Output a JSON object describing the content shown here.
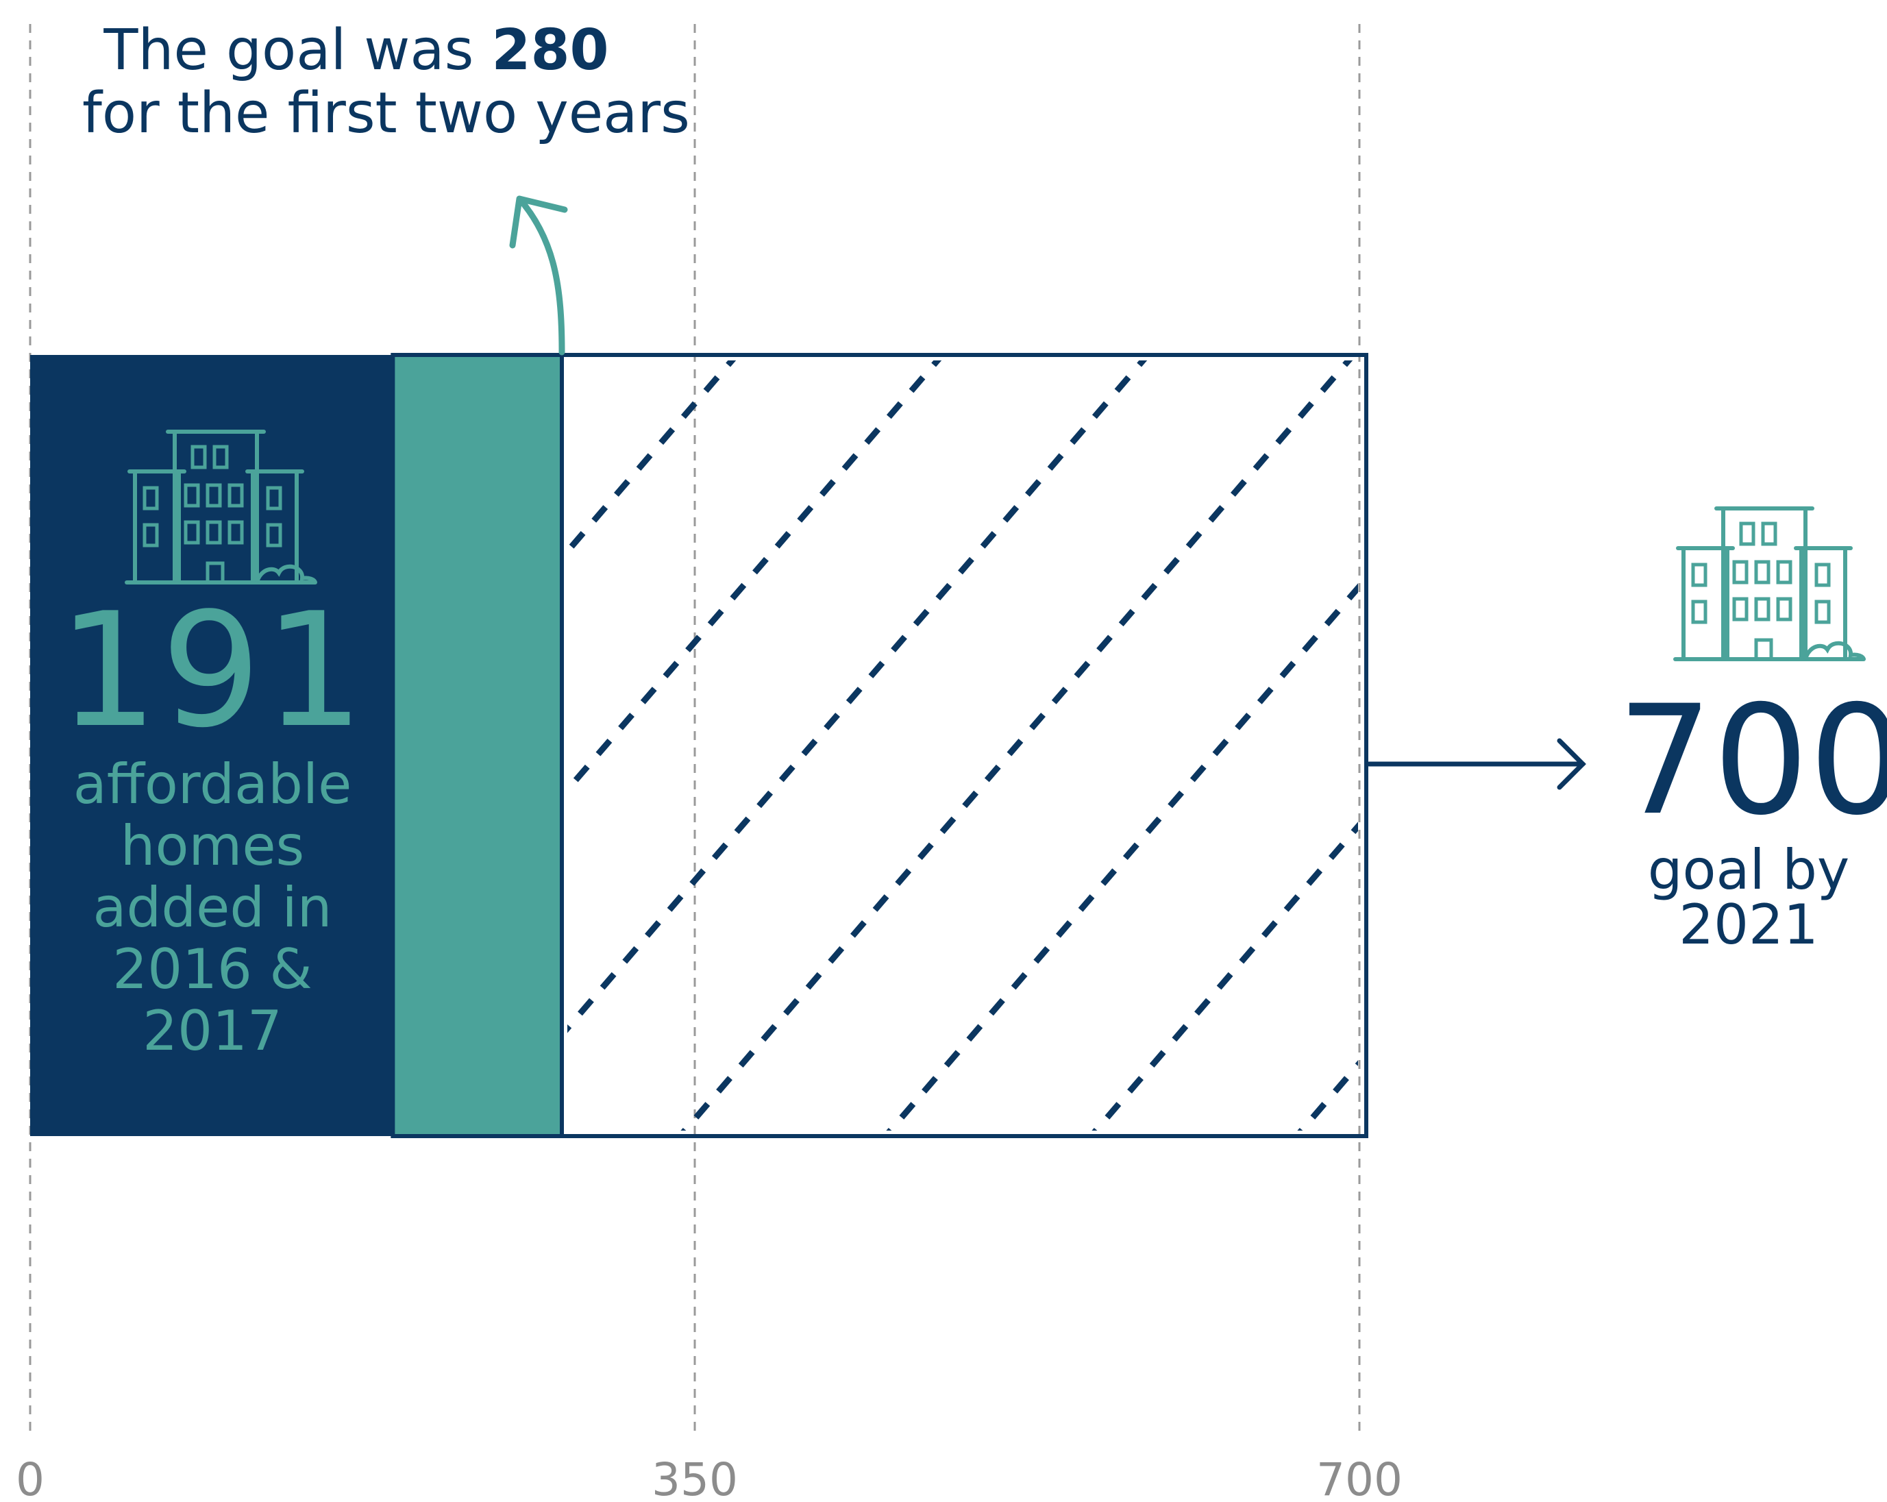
{
  "annotation": {
    "prefix": "The goal was",
    "value": "280",
    "suffix": "for the first two years"
  },
  "left_panel": {
    "number": "191",
    "caption": "affordable homes added in 2016 & 2017",
    "icon": "apartment-building-icon"
  },
  "goal_panel": {
    "number": "700",
    "caption": "goal by 2021",
    "icon": "apartment-building-icon"
  },
  "colors": {
    "navy": "#0b3660",
    "teal": "#4ba39a",
    "grid": "#9a9a9a",
    "tick_text": "#8c8c8c"
  },
  "chart_data": {
    "type": "bar",
    "orientation": "horizontal",
    "xlim": [
      0,
      700
    ],
    "x_ticks": [
      0,
      350,
      700
    ],
    "gridlines": "dashed vertical at tick positions",
    "segments": [
      {
        "label": "affordable homes added in 2016 & 2017",
        "start": 0,
        "end": 191,
        "style": "solid",
        "color": "#0b3660"
      },
      {
        "label": "goal for the first two years",
        "start": 191,
        "end": 280,
        "style": "solid",
        "color": "#4ba39a"
      },
      {
        "label": "goal by 2021",
        "start": 280,
        "end": 700,
        "style": "hatched outline",
        "color": "#0b3660"
      }
    ],
    "values": {
      "achieved": 191,
      "two_year_goal": 280,
      "final_goal": 700
    }
  }
}
